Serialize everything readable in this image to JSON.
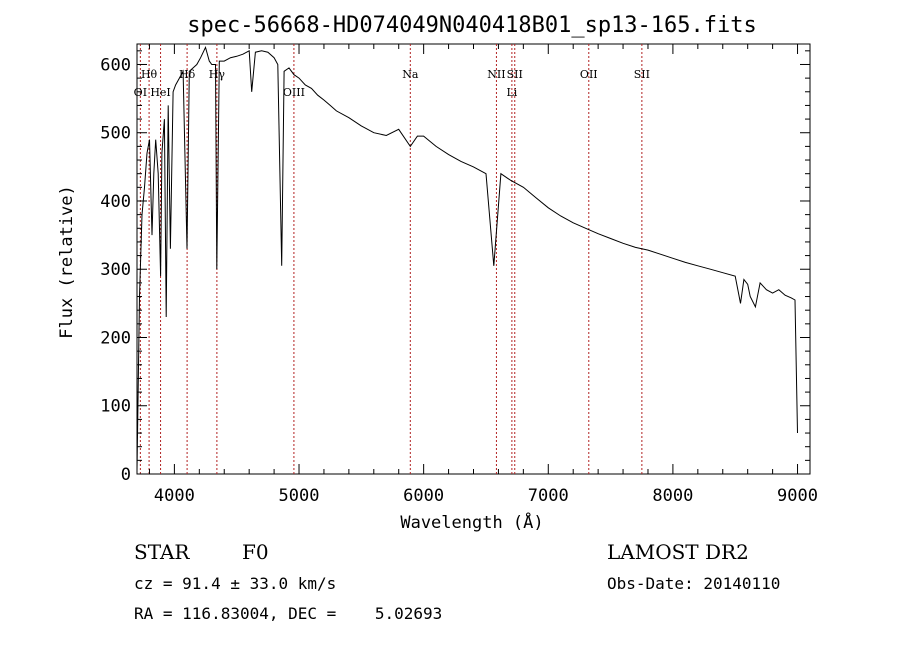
{
  "chart_data": {
    "type": "line",
    "title": "spec-56668-HD074049N040418B01_sp13-165.fits",
    "xlabel": "Wavelength (Å)",
    "ylabel": "Flux (relative)",
    "xlim": [
      3700,
      9100
    ],
    "ylim": [
      0,
      630
    ],
    "x_ticks": [
      4000,
      5000,
      6000,
      7000,
      8000,
      9000
    ],
    "y_ticks": [
      0,
      100,
      200,
      300,
      400,
      500,
      600
    ],
    "grid": false,
    "line_color": "#000000",
    "marker_color": "#b22222",
    "series": [
      {
        "x": [
          3700,
          3720,
          3740,
          3760,
          3780,
          3800,
          3820,
          3835,
          3850,
          3870,
          3889,
          3900,
          3920,
          3934,
          3950,
          3968,
          3990,
          4010,
          4040,
          4070,
          4101,
          4120,
          4150,
          4180,
          4210,
          4250,
          4280,
          4300,
          4330,
          4340,
          4360,
          4400,
          4450,
          4500,
          4550,
          4600,
          4620,
          4650,
          4700,
          4750,
          4800,
          4830,
          4861,
          4880,
          4920,
          4960,
          5000,
          5050,
          5100,
          5150,
          5200,
          5250,
          5300,
          5400,
          5500,
          5600,
          5700,
          5800,
          5893,
          5950,
          6000,
          6100,
          6200,
          6300,
          6400,
          6500,
          6563,
          6620,
          6700,
          6800,
          6900,
          7000,
          7100,
          7200,
          7300,
          7400,
          7500,
          7600,
          7700,
          7800,
          7900,
          8000,
          8100,
          8200,
          8300,
          8400,
          8500,
          8542,
          8570,
          8600,
          8620,
          8662,
          8700,
          8750,
          8800,
          8850,
          8900,
          8950,
          8980,
          9000
        ],
        "y": [
          5,
          260,
          380,
          420,
          470,
          490,
          350,
          440,
          490,
          440,
          290,
          470,
          520,
          230,
          540,
          330,
          560,
          570,
          580,
          590,
          330,
          590,
          595,
          600,
          610,
          625,
          605,
          600,
          600,
          300,
          605,
          605,
          610,
          612,
          615,
          620,
          560,
          618,
          620,
          618,
          610,
          600,
          305,
          590,
          595,
          585,
          580,
          570,
          565,
          555,
          548,
          540,
          532,
          522,
          510,
          500,
          496,
          505,
          480,
          495,
          495,
          480,
          468,
          458,
          450,
          440,
          305,
          440,
          430,
          420,
          405,
          390,
          378,
          368,
          360,
          352,
          345,
          338,
          332,
          328,
          322,
          316,
          310,
          305,
          300,
          295,
          290,
          250,
          285,
          278,
          260,
          245,
          280,
          270,
          265,
          270,
          262,
          258,
          255,
          60
        ]
      }
    ],
    "line_markers": [
      {
        "label": "Hθ",
        "x": 3797,
        "position": "top"
      },
      {
        "label": "OI",
        "x": 3727,
        "position": "bottom"
      },
      {
        "label": "HeI",
        "x": 3889,
        "position": "bottom"
      },
      {
        "label": "Hδ",
        "x": 4102,
        "position": "top"
      },
      {
        "label": "Hγ",
        "x": 4341,
        "position": "top"
      },
      {
        "label": "OIII",
        "x": 4959,
        "position": "bottom"
      },
      {
        "label": "Na",
        "x": 5893,
        "position": "top"
      },
      {
        "label": "NII",
        "x": 6584,
        "position": "top"
      },
      {
        "label": "Li",
        "x": 6708,
        "position": "bottom"
      },
      {
        "label": "SII",
        "x": 6731,
        "position": "top"
      },
      {
        "label": "OII",
        "x": 7325,
        "position": "top"
      },
      {
        "label": "SII",
        "x": 7751,
        "position": "top"
      }
    ]
  },
  "footer": {
    "object_class": "STAR",
    "subclass": "F0",
    "survey": "LAMOST DR2",
    "cz": "cz = 91.4 ± 33.0 km/s",
    "obs_date": "Obs-Date: 20140110",
    "coords": "RA = 116.83004, DEC =    5.02693"
  }
}
